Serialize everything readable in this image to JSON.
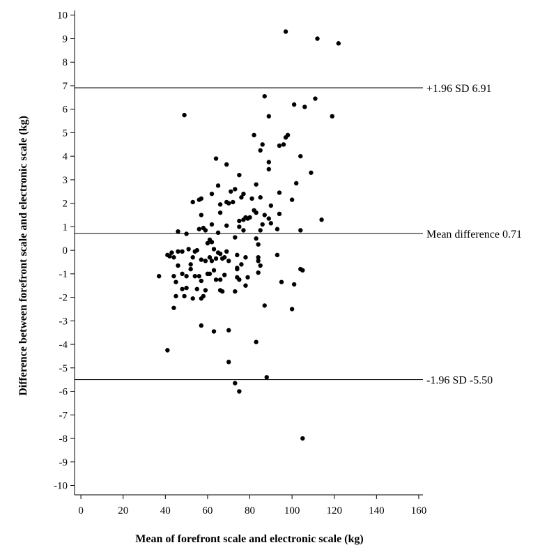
{
  "chart_data": {
    "type": "scatter",
    "title": "",
    "xlabel": "Mean of forefront scale and electronic scale (kg)",
    "ylabel": "Difference between forefront scale and electronic scale (kg)",
    "xlim": [
      -3,
      162
    ],
    "ylim": [
      -10.4,
      10.2
    ],
    "x_ticks": [
      0,
      20,
      40,
      60,
      80,
      100,
      120,
      140,
      160
    ],
    "y_ticks": [
      10,
      9,
      8,
      7,
      6,
      5,
      4,
      3,
      2,
      1,
      0,
      -1,
      -2,
      -3,
      -4,
      -5,
      -6,
      -7,
      -8,
      -9,
      -10
    ],
    "grid": false,
    "reference_lines": [
      {
        "y": 6.91,
        "label": "+1.96 SD 6.91"
      },
      {
        "y": 0.71,
        "label": "Mean difference 0.71"
      },
      {
        "y": -5.5,
        "label": "-1.96 SD -5.50"
      }
    ],
    "points": [
      [
        97,
        9.3
      ],
      [
        112,
        9.0
      ],
      [
        122,
        8.8
      ],
      [
        87,
        6.55
      ],
      [
        101,
        6.2
      ],
      [
        111,
        6.45
      ],
      [
        106,
        6.1
      ],
      [
        119,
        5.7
      ],
      [
        89,
        5.7
      ],
      [
        49,
        5.75
      ],
      [
        98,
        4.9
      ],
      [
        97,
        4.8
      ],
      [
        82,
        4.9
      ],
      [
        86,
        4.5
      ],
      [
        96,
        4.5
      ],
      [
        94,
        4.45
      ],
      [
        85,
        4.25
      ],
      [
        64,
        3.9
      ],
      [
        104,
        4.0
      ],
      [
        69,
        3.65
      ],
      [
        89,
        3.75
      ],
      [
        89,
        3.45
      ],
      [
        75,
        3.2
      ],
      [
        109,
        3.3
      ],
      [
        65,
        2.75
      ],
      [
        73,
        2.6
      ],
      [
        71,
        2.5
      ],
      [
        83,
        2.8
      ],
      [
        102,
        2.85
      ],
      [
        94,
        2.45
      ],
      [
        62,
        2.4
      ],
      [
        77,
        2.4
      ],
      [
        76,
        2.25
      ],
      [
        57,
        2.2
      ],
      [
        56,
        2.15
      ],
      [
        81,
        2.2
      ],
      [
        85,
        2.25
      ],
      [
        53,
        2.05
      ],
      [
        69,
        2.05
      ],
      [
        72,
        2.05
      ],
      [
        66,
        1.95
      ],
      [
        70,
        2.0
      ],
      [
        90,
        1.9
      ],
      [
        100,
        2.15
      ],
      [
        80,
        1.4
      ],
      [
        82,
        1.7
      ],
      [
        87,
        1.5
      ],
      [
        94,
        1.55
      ],
      [
        78,
        1.4
      ],
      [
        66,
        1.6
      ],
      [
        57,
        1.5
      ],
      [
        83,
        1.6
      ],
      [
        79,
        1.35
      ],
      [
        75,
        1.25
      ],
      [
        86,
        1.1
      ],
      [
        77,
        1.3
      ],
      [
        89,
        1.35
      ],
      [
        90,
        1.15
      ],
      [
        114,
        1.3
      ],
      [
        62,
        1.1
      ],
      [
        69,
        1.05
      ],
      [
        75,
        1.0
      ],
      [
        77,
        0.85
      ],
      [
        56,
        0.9
      ],
      [
        59,
        0.85
      ],
      [
        46,
        0.8
      ],
      [
        58,
        0.95
      ],
      [
        65,
        0.75
      ],
      [
        85,
        0.85
      ],
      [
        93,
        0.9
      ],
      [
        104,
        0.85
      ],
      [
        50,
        0.7
      ],
      [
        73,
        0.55
      ],
      [
        83,
        0.5
      ],
      [
        61,
        0.45
      ],
      [
        62,
        0.35
      ],
      [
        60,
        0.3
      ],
      [
        84,
        0.25
      ],
      [
        63,
        0.05
      ],
      [
        51,
        0.05
      ],
      [
        55,
        0.0
      ],
      [
        54,
        -0.05
      ],
      [
        46,
        -0.05
      ],
      [
        43,
        -0.1
      ],
      [
        48,
        -0.05
      ],
      [
        65,
        -0.1
      ],
      [
        69,
        -0.05
      ],
      [
        66,
        -0.15
      ],
      [
        41,
        -0.2
      ],
      [
        42,
        -0.25
      ],
      [
        44,
        -0.3
      ],
      [
        53,
        -0.3
      ],
      [
        57,
        -0.4
      ],
      [
        59,
        -0.45
      ],
      [
        62,
        -0.45
      ],
      [
        61,
        -0.3
      ],
      [
        64,
        -0.35
      ],
      [
        68,
        -0.3
      ],
      [
        67,
        -0.35
      ],
      [
        70,
        -0.45
      ],
      [
        74,
        -0.2
      ],
      [
        84,
        -0.3
      ],
      [
        93,
        -0.2
      ],
      [
        84,
        -0.45
      ],
      [
        78,
        -0.3
      ],
      [
        76,
        -0.6
      ],
      [
        85,
        -0.65
      ],
      [
        46,
        -0.65
      ],
      [
        52,
        -0.6
      ],
      [
        52,
        -0.8
      ],
      [
        63,
        -0.85
      ],
      [
        61,
        -1.0
      ],
      [
        74,
        -0.8
      ],
      [
        48,
        -1.0
      ],
      [
        37,
        -1.1
      ],
      [
        44,
        -1.1
      ],
      [
        50,
        -1.1
      ],
      [
        54,
        -1.1
      ],
      [
        56,
        -1.1
      ],
      [
        60,
        -1.0
      ],
      [
        68,
        -1.05
      ],
      [
        74,
        -1.15
      ],
      [
        74,
        -0.75
      ],
      [
        79,
        -1.15
      ],
      [
        84,
        -0.95
      ],
      [
        104,
        -0.8
      ],
      [
        105,
        -0.85
      ],
      [
        45,
        -1.35
      ],
      [
        57,
        -1.3
      ],
      [
        64,
        -1.25
      ],
      [
        66,
        -1.25
      ],
      [
        75,
        -1.25
      ],
      [
        78,
        -1.5
      ],
      [
        95,
        -1.35
      ],
      [
        101,
        -1.45
      ],
      [
        48,
        -1.65
      ],
      [
        50,
        -1.6
      ],
      [
        55,
        -1.65
      ],
      [
        59,
        -1.7
      ],
      [
        66,
        -1.7
      ],
      [
        67,
        -1.75
      ],
      [
        73,
        -1.75
      ],
      [
        45,
        -1.95
      ],
      [
        49,
        -1.95
      ],
      [
        53,
        -2.05
      ],
      [
        57,
        -2.05
      ],
      [
        58,
        -1.95
      ],
      [
        44,
        -2.45
      ],
      [
        87,
        -2.35
      ],
      [
        100,
        -2.5
      ],
      [
        57,
        -3.2
      ],
      [
        63,
        -3.45
      ],
      [
        70,
        -3.4
      ],
      [
        83,
        -3.9
      ],
      [
        41,
        -4.25
      ],
      [
        70,
        -4.75
      ],
      [
        88,
        -5.4
      ],
      [
        73,
        -5.65
      ],
      [
        75,
        -6.0
      ],
      [
        105,
        -8.0
      ]
    ]
  }
}
